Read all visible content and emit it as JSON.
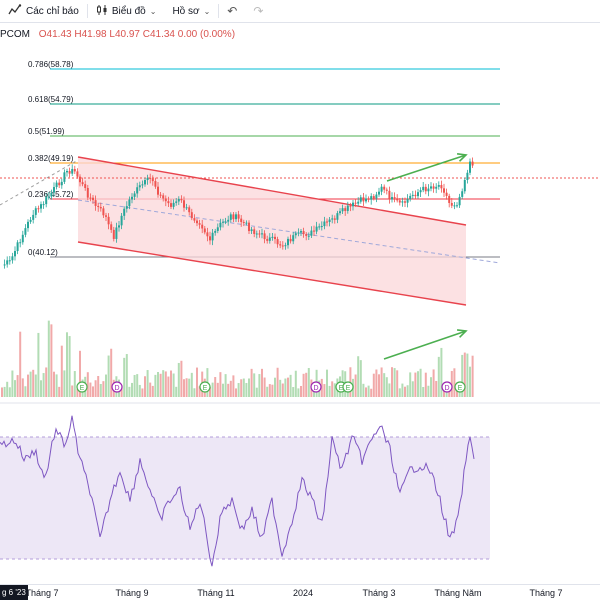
{
  "toolbar": {
    "indicators_label": "Các chỉ báo",
    "chart_label": "Biểu đồ",
    "profile_label": "Hồ sơ",
    "indicators_icon": "indicator-icon",
    "chart_icon": "candlestick-icon",
    "undo_icon": "undo-icon",
    "redo_icon": "redo-icon"
  },
  "legend": {
    "symbol": "PCOM",
    "ohlc": "O41.43 H41.98 L40.97 C41.34 0.00 (0.00%)"
  },
  "colors": {
    "up": "#26a69a",
    "down": "#ef5350",
    "channel_fill": "#fbd7d9",
    "channel_line": "#e8434d",
    "rsi_line": "#7e57c2",
    "rsi_band": "#ede7f6",
    "arrow": "#4caf50",
    "fib_0": "#787b86",
    "fib_236": "#f23645",
    "fib_382": "#ff9800",
    "fib_5": "#4caf50",
    "fib_618": "#089981",
    "fib_786": "#00bcd4"
  },
  "chart_data": {
    "type": "candlestick",
    "fib_levels": [
      {
        "label": "0.786(58.78)",
        "ratio": 0.786,
        "price": 58.78
      },
      {
        "label": "0.618(54.79)",
        "ratio": 0.618,
        "price": 54.79
      },
      {
        "label": "0.5(51.99)",
        "ratio": 0.5,
        "price": 51.99
      },
      {
        "label": "0.382(49.19)",
        "ratio": 0.382,
        "price": 49.19
      },
      {
        "label": "0.236(45.72)",
        "ratio": 0.236,
        "price": 45.72
      },
      {
        "label": "0(40.12)",
        "ratio": 0,
        "price": 40.12
      }
    ],
    "x_ticks": [
      "Tháng 9",
      "Tháng 11",
      "2024",
      "Tháng 3",
      "Tháng Năm",
      "Tháng 7"
    ],
    "x_tick_partial": [
      "Tháng 7",
      "g 6 '23"
    ],
    "events": [
      "E",
      "D",
      "E",
      "D",
      "E",
      "E",
      "D",
      "E"
    ],
    "last_close": 41.34
  }
}
